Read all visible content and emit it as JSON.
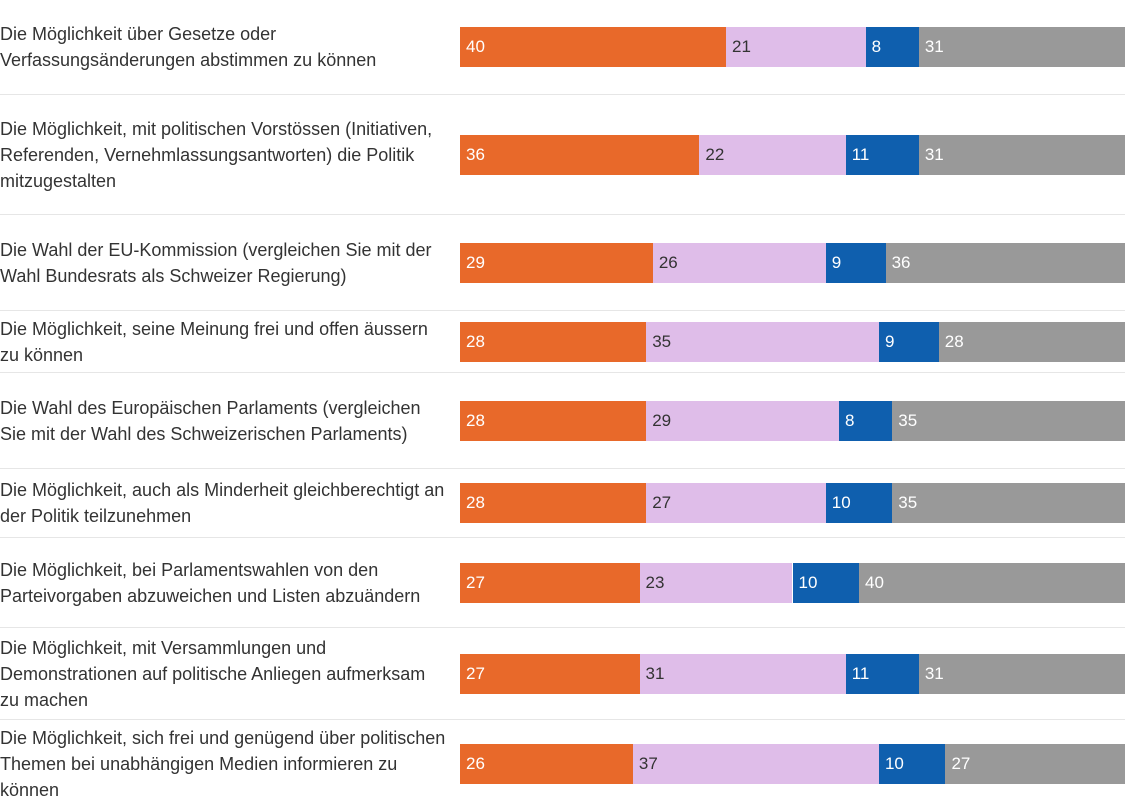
{
  "chart_data": {
    "type": "stacked-bar-horizontal",
    "categories": [
      "Die Möglichkeit über Gesetze oder Verfassungsänderungen abstimmen zu können",
      "Die Möglichkeit, mit politischen Vorstössen (Initiativen, Referenden, Vernehmlassungsantworten) die Politik mitzugestalten",
      "Die Wahl der EU-Kommission (vergleichen Sie mit der Wahl Bundesrats als Schweizer Regierung)",
      "Die Möglichkeit, seine Meinung frei und offen äussern zu können",
      "Die Wahl des Europäischen Parlaments (vergleichen Sie mit der Wahl des Schweizerischen Parlaments)",
      "Die Möglichkeit, auch als Minderheit gleichberechtigt an der Politik teilzunehmen",
      "Die Möglichkeit, bei Parlamentswahlen von den Parteivorgaben abzuweichen und Listen abzuändern",
      "Die Möglichkeit, mit Versammlungen und Demonstrationen auf politische Anliegen aufmerksam zu machen",
      "Die Möglichkeit, sich frei und genügend über politischen Themen bei unabhängigen Medien informieren zu können"
    ],
    "series": [
      {
        "color": "#e8692a",
        "values": [
          40,
          36,
          29,
          28,
          28,
          28,
          27,
          27,
          26
        ]
      },
      {
        "color": "#dfbde9",
        "values": [
          21,
          22,
          26,
          35,
          29,
          27,
          23,
          31,
          37
        ]
      },
      {
        "color": "#0f5fae",
        "values": [
          8,
          11,
          9,
          9,
          8,
          10,
          10,
          11,
          10
        ]
      },
      {
        "color": "#999999",
        "values": [
          31,
          31,
          36,
          28,
          35,
          35,
          40,
          31,
          27
        ]
      }
    ],
    "xlim": [
      0,
      100
    ]
  }
}
